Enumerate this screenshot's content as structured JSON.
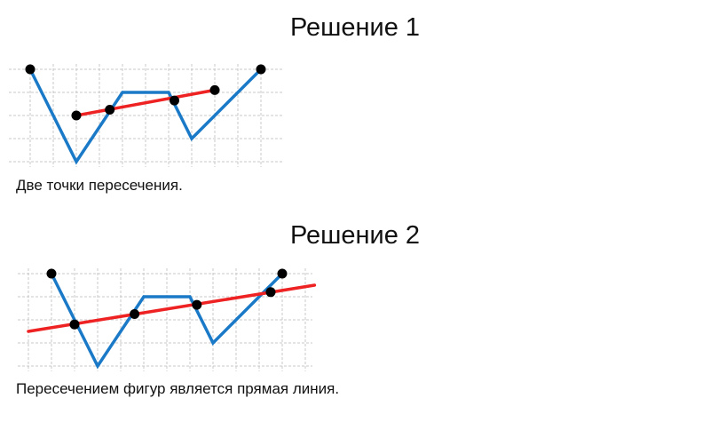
{
  "solutions": [
    {
      "title": "Решение 1",
      "caption": "Две точки пересечения.",
      "grid": {
        "cols": 11,
        "rows": 4
      },
      "polyline": [
        [
          0,
          4
        ],
        [
          2,
          0
        ],
        [
          4,
          3
        ],
        [
          6,
          3
        ],
        [
          7,
          1
        ],
        [
          10,
          4
        ]
      ],
      "line": {
        "from": [
          2,
          2
        ],
        "to": [
          8,
          3.1
        ]
      },
      "points": [
        [
          0,
          4
        ],
        [
          10,
          4
        ],
        [
          2,
          2
        ],
        [
          3.45,
          2.25
        ],
        [
          6.25,
          2.65
        ],
        [
          8,
          3.1
        ]
      ]
    },
    {
      "title": "Решение 2",
      "caption": "Пересечением фигур является прямая линия.",
      "grid": {
        "cols": 13,
        "rows": 4
      },
      "polyline": [
        [
          1,
          4
        ],
        [
          3,
          0
        ],
        [
          5,
          3
        ],
        [
          7,
          3
        ],
        [
          8,
          1
        ],
        [
          11,
          4
        ]
      ],
      "line": {
        "from": [
          0,
          1.5
        ],
        "to": [
          12.4,
          3.5
        ]
      },
      "points": [
        [
          1,
          4
        ],
        [
          11,
          4
        ],
        [
          2,
          1.8
        ],
        [
          4.6,
          2.25
        ],
        [
          7.3,
          2.65
        ],
        [
          10.5,
          3.2
        ]
      ]
    }
  ],
  "colors": {
    "polyline": "#1b7ac8",
    "line": "#ee2222",
    "point": "#000000",
    "grid": "#c8c8c8"
  }
}
